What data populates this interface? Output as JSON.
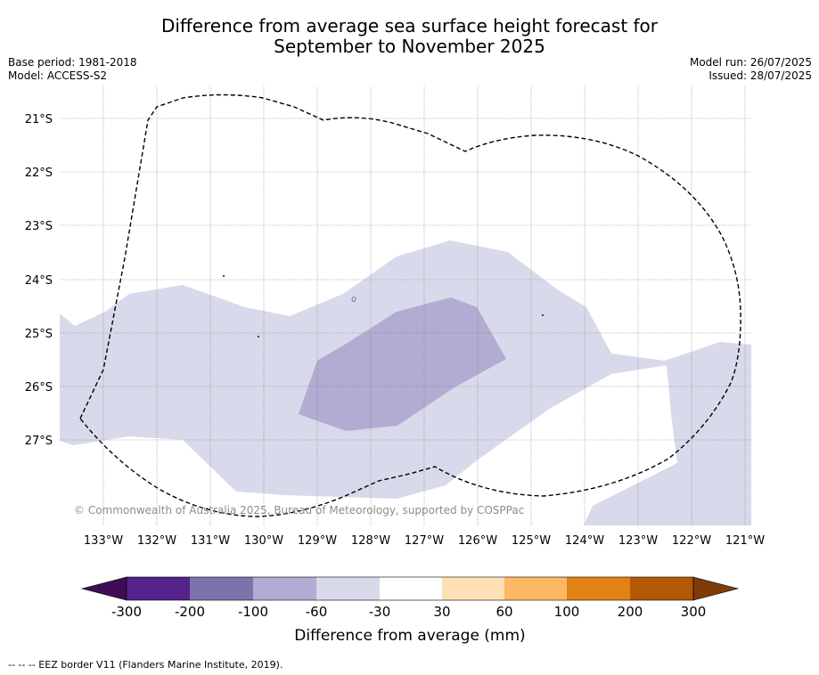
{
  "title_line1": "Difference from average sea surface height forecast for",
  "title_line2": "September to November 2025",
  "base_period": "Base period: 1981-2018",
  "model": "Model: ACCESS-S2",
  "model_run": "Model run: 26/07/2025",
  "issued": "Issued: 28/07/2025",
  "copyright": "© Commonwealth of Australia 2025, Bureau of Meteorology, supported by COSPPac",
  "lat_labels": [
    "21°S",
    "22°S",
    "23°S",
    "24°S",
    "25°S",
    "26°S",
    "27°S"
  ],
  "lon_labels": [
    "133°W",
    "132°W",
    "131°W",
    "130°W",
    "129°W",
    "128°W",
    "127°W",
    "126°W",
    "125°W",
    "124°W",
    "123°W",
    "122°W",
    "121°W"
  ],
  "colorbar": {
    "title": "Difference from average (mm)",
    "tick_labels": [
      "-300",
      "-200",
      "-100",
      "-60",
      "-30",
      "30",
      "60",
      "100",
      "200",
      "300"
    ],
    "colors": [
      "#3f0c57",
      "#54228a",
      "#7e72ad",
      "#b2abd2",
      "#d8d9ea",
      "#ffffff",
      "#fee0b6",
      "#fdb863",
      "#e08214",
      "#b35806",
      "#7f3b08"
    ]
  },
  "footnote": "-- -- -- EEZ border V11 (Flanders Marine Institute, 2019)."
}
